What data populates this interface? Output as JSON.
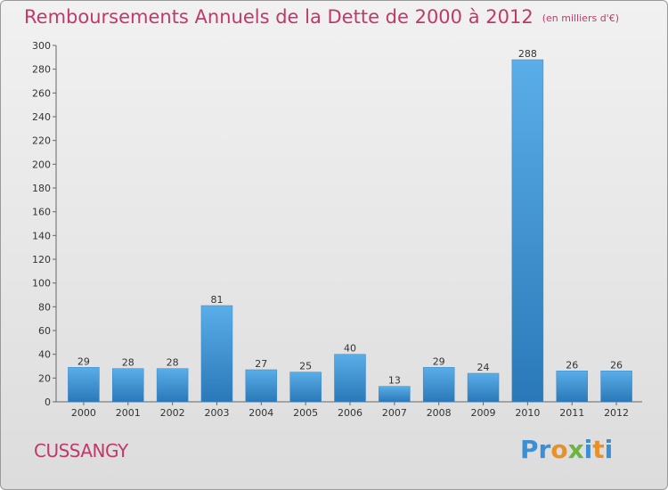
{
  "header": {
    "title": "Remboursements Annuels de la Dette de 2000 à 2012",
    "unit": "(en milliers d'€)"
  },
  "footer": {
    "place": "CUSSANGY",
    "logo": "Proxiti"
  },
  "colors": {
    "title": "#c0396a",
    "bar_light": "#5aaee8",
    "bar_dark": "#2a78b8",
    "logo_letters": [
      "#3a8fd6",
      "#3a8fd6",
      "#e8902a",
      "#6ab640",
      "#3a8fd6",
      "#e8902a",
      "#3a8fd6"
    ]
  },
  "chart_data": {
    "type": "bar",
    "title": "Remboursements Annuels de la Dette de 2000 à 2012",
    "xlabel": "",
    "ylabel": "",
    "categories": [
      "2000",
      "2001",
      "2002",
      "2003",
      "2004",
      "2005",
      "2006",
      "2007",
      "2008",
      "2009",
      "2010",
      "2011",
      "2012"
    ],
    "values": [
      29,
      28,
      28,
      81,
      27,
      25,
      40,
      13,
      29,
      24,
      288,
      26,
      26
    ],
    "ylim": [
      0,
      300
    ],
    "yticks": [
      0,
      20,
      40,
      60,
      80,
      100,
      120,
      140,
      160,
      180,
      200,
      220,
      240,
      260,
      280,
      300
    ],
    "grid": false,
    "data_labels": true
  }
}
